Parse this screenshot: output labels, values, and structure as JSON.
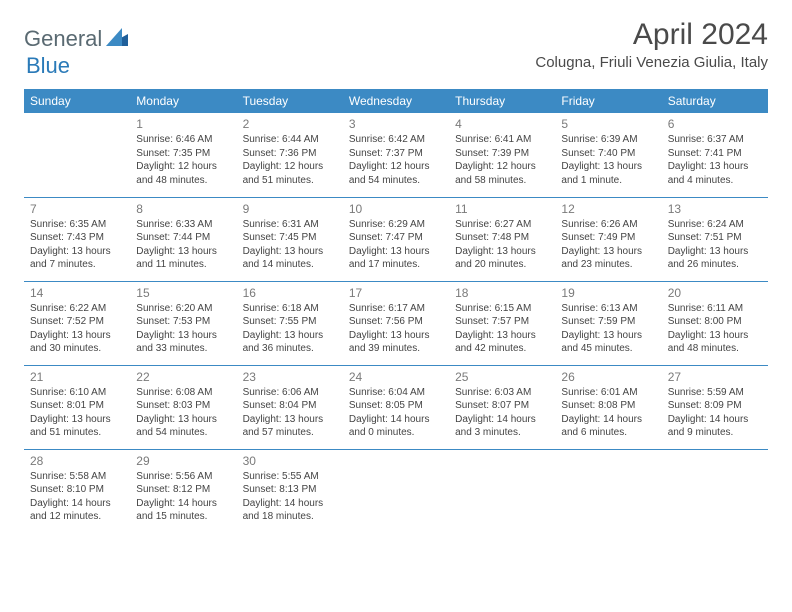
{
  "logo": {
    "general": "General",
    "blue": "Blue"
  },
  "title": "April 2024",
  "location": "Colugna, Friuli Venezia Giulia, Italy",
  "colors": {
    "header_bg": "#3c8ac4",
    "header_text": "#ffffff",
    "rule": "#3c8ac4",
    "daynum": "#7a7a7a",
    "body_text": "#444444",
    "logo_general": "#5a6a72",
    "logo_blue": "#2a7ab8"
  },
  "weekdays": [
    "Sunday",
    "Monday",
    "Tuesday",
    "Wednesday",
    "Thursday",
    "Friday",
    "Saturday"
  ],
  "weeks": [
    [
      null,
      {
        "n": "1",
        "sr": "Sunrise: 6:46 AM",
        "ss": "Sunset: 7:35 PM",
        "d1": "Daylight: 12 hours",
        "d2": "and 48 minutes."
      },
      {
        "n": "2",
        "sr": "Sunrise: 6:44 AM",
        "ss": "Sunset: 7:36 PM",
        "d1": "Daylight: 12 hours",
        "d2": "and 51 minutes."
      },
      {
        "n": "3",
        "sr": "Sunrise: 6:42 AM",
        "ss": "Sunset: 7:37 PM",
        "d1": "Daylight: 12 hours",
        "d2": "and 54 minutes."
      },
      {
        "n": "4",
        "sr": "Sunrise: 6:41 AM",
        "ss": "Sunset: 7:39 PM",
        "d1": "Daylight: 12 hours",
        "d2": "and 58 minutes."
      },
      {
        "n": "5",
        "sr": "Sunrise: 6:39 AM",
        "ss": "Sunset: 7:40 PM",
        "d1": "Daylight: 13 hours",
        "d2": "and 1 minute."
      },
      {
        "n": "6",
        "sr": "Sunrise: 6:37 AM",
        "ss": "Sunset: 7:41 PM",
        "d1": "Daylight: 13 hours",
        "d2": "and 4 minutes."
      }
    ],
    [
      {
        "n": "7",
        "sr": "Sunrise: 6:35 AM",
        "ss": "Sunset: 7:43 PM",
        "d1": "Daylight: 13 hours",
        "d2": "and 7 minutes."
      },
      {
        "n": "8",
        "sr": "Sunrise: 6:33 AM",
        "ss": "Sunset: 7:44 PM",
        "d1": "Daylight: 13 hours",
        "d2": "and 11 minutes."
      },
      {
        "n": "9",
        "sr": "Sunrise: 6:31 AM",
        "ss": "Sunset: 7:45 PM",
        "d1": "Daylight: 13 hours",
        "d2": "and 14 minutes."
      },
      {
        "n": "10",
        "sr": "Sunrise: 6:29 AM",
        "ss": "Sunset: 7:47 PM",
        "d1": "Daylight: 13 hours",
        "d2": "and 17 minutes."
      },
      {
        "n": "11",
        "sr": "Sunrise: 6:27 AM",
        "ss": "Sunset: 7:48 PM",
        "d1": "Daylight: 13 hours",
        "d2": "and 20 minutes."
      },
      {
        "n": "12",
        "sr": "Sunrise: 6:26 AM",
        "ss": "Sunset: 7:49 PM",
        "d1": "Daylight: 13 hours",
        "d2": "and 23 minutes."
      },
      {
        "n": "13",
        "sr": "Sunrise: 6:24 AM",
        "ss": "Sunset: 7:51 PM",
        "d1": "Daylight: 13 hours",
        "d2": "and 26 minutes."
      }
    ],
    [
      {
        "n": "14",
        "sr": "Sunrise: 6:22 AM",
        "ss": "Sunset: 7:52 PM",
        "d1": "Daylight: 13 hours",
        "d2": "and 30 minutes."
      },
      {
        "n": "15",
        "sr": "Sunrise: 6:20 AM",
        "ss": "Sunset: 7:53 PM",
        "d1": "Daylight: 13 hours",
        "d2": "and 33 minutes."
      },
      {
        "n": "16",
        "sr": "Sunrise: 6:18 AM",
        "ss": "Sunset: 7:55 PM",
        "d1": "Daylight: 13 hours",
        "d2": "and 36 minutes."
      },
      {
        "n": "17",
        "sr": "Sunrise: 6:17 AM",
        "ss": "Sunset: 7:56 PM",
        "d1": "Daylight: 13 hours",
        "d2": "and 39 minutes."
      },
      {
        "n": "18",
        "sr": "Sunrise: 6:15 AM",
        "ss": "Sunset: 7:57 PM",
        "d1": "Daylight: 13 hours",
        "d2": "and 42 minutes."
      },
      {
        "n": "19",
        "sr": "Sunrise: 6:13 AM",
        "ss": "Sunset: 7:59 PM",
        "d1": "Daylight: 13 hours",
        "d2": "and 45 minutes."
      },
      {
        "n": "20",
        "sr": "Sunrise: 6:11 AM",
        "ss": "Sunset: 8:00 PM",
        "d1": "Daylight: 13 hours",
        "d2": "and 48 minutes."
      }
    ],
    [
      {
        "n": "21",
        "sr": "Sunrise: 6:10 AM",
        "ss": "Sunset: 8:01 PM",
        "d1": "Daylight: 13 hours",
        "d2": "and 51 minutes."
      },
      {
        "n": "22",
        "sr": "Sunrise: 6:08 AM",
        "ss": "Sunset: 8:03 PM",
        "d1": "Daylight: 13 hours",
        "d2": "and 54 minutes."
      },
      {
        "n": "23",
        "sr": "Sunrise: 6:06 AM",
        "ss": "Sunset: 8:04 PM",
        "d1": "Daylight: 13 hours",
        "d2": "and 57 minutes."
      },
      {
        "n": "24",
        "sr": "Sunrise: 6:04 AM",
        "ss": "Sunset: 8:05 PM",
        "d1": "Daylight: 14 hours",
        "d2": "and 0 minutes."
      },
      {
        "n": "25",
        "sr": "Sunrise: 6:03 AM",
        "ss": "Sunset: 8:07 PM",
        "d1": "Daylight: 14 hours",
        "d2": "and 3 minutes."
      },
      {
        "n": "26",
        "sr": "Sunrise: 6:01 AM",
        "ss": "Sunset: 8:08 PM",
        "d1": "Daylight: 14 hours",
        "d2": "and 6 minutes."
      },
      {
        "n": "27",
        "sr": "Sunrise: 5:59 AM",
        "ss": "Sunset: 8:09 PM",
        "d1": "Daylight: 14 hours",
        "d2": "and 9 minutes."
      }
    ],
    [
      {
        "n": "28",
        "sr": "Sunrise: 5:58 AM",
        "ss": "Sunset: 8:10 PM",
        "d1": "Daylight: 14 hours",
        "d2": "and 12 minutes."
      },
      {
        "n": "29",
        "sr": "Sunrise: 5:56 AM",
        "ss": "Sunset: 8:12 PM",
        "d1": "Daylight: 14 hours",
        "d2": "and 15 minutes."
      },
      {
        "n": "30",
        "sr": "Sunrise: 5:55 AM",
        "ss": "Sunset: 8:13 PM",
        "d1": "Daylight: 14 hours",
        "d2": "and 18 minutes."
      },
      null,
      null,
      null,
      null
    ]
  ]
}
